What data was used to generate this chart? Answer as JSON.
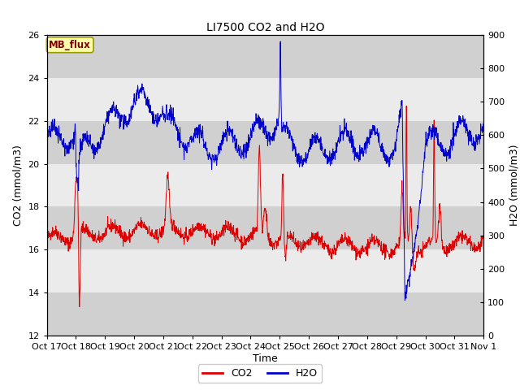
{
  "title": "LI7500 CO2 and H2O",
  "xlabel": "Time",
  "ylabel_left": "CO2 (mmol/m3)",
  "ylabel_right": "H2O (mmol/m3)",
  "ylim_left": [
    12,
    26
  ],
  "ylim_right": [
    0,
    900
  ],
  "yticks_left": [
    12,
    14,
    16,
    18,
    20,
    22,
    24,
    26
  ],
  "yticks_right": [
    0,
    100,
    200,
    300,
    400,
    500,
    600,
    700,
    800,
    900
  ],
  "x_tick_labels": [
    "Oct 17",
    "Oct 18",
    "Oct 19",
    "Oct 20",
    "Oct 21",
    "Oct 22",
    "Oct 23",
    "Oct 24",
    "Oct 25",
    "Oct 26",
    "Oct 27",
    "Oct 28",
    "Oct 29",
    "Oct 30",
    "Oct 31",
    "Nov 1"
  ],
  "co2_color": "#dd0000",
  "h2o_color": "#0000cc",
  "plot_bg_color": "#ebebeb",
  "band_color": "#d0d0d0",
  "tag_text": "MB_flux",
  "tag_bg": "#ffffaa",
  "tag_fg": "#800000",
  "legend_co2": "CO2",
  "legend_h2o": "H2O",
  "num_points": 1500,
  "seed": 42,
  "figwidth": 6.4,
  "figheight": 4.8,
  "dpi": 100
}
